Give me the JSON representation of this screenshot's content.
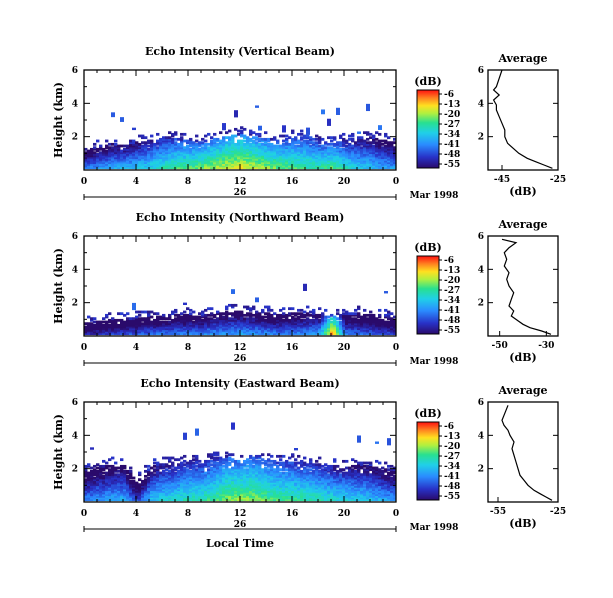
{
  "figure": {
    "date_label": "Mar 1998",
    "xlabel": "Local Time",
    "day_label": "26",
    "ylabel": "Height (km)",
    "colorbar_unit": "(dB)",
    "colorbar_ticks": [
      "-6",
      "-13",
      "-20",
      "-27",
      "-34",
      "-41",
      "-48",
      "-55"
    ],
    "avg_title": "Average",
    "avg_xlabel": "(dB)"
  },
  "chart_data": [
    {
      "type": "heatmap",
      "title": "Echo Intensity (Vertical Beam)",
      "x_ticks": [
        "0",
        "4",
        "8",
        "12",
        "16",
        "20",
        "0"
      ],
      "y_ticks": [
        "6",
        "4",
        "2"
      ],
      "xlim": [
        0,
        24
      ],
      "ylim": [
        0,
        6
      ],
      "clim": [
        -55,
        -6
      ],
      "echo_top_km": [
        1.1,
        1.3,
        1.5,
        1.4,
        1.6,
        1.7,
        1.9,
        1.8,
        1.7,
        1.6,
        1.8,
        2.0,
        2.1,
        1.9,
        1.8,
        1.7,
        1.9,
        2.0,
        1.8,
        1.6,
        1.7,
        1.8,
        1.9,
        1.7,
        1.6
      ],
      "surface_db": [
        -40,
        -37,
        -36,
        -34,
        -33,
        -31,
        -28,
        -25,
        -24,
        -22,
        -20,
        -18,
        -17,
        -19,
        -21,
        -23,
        -24,
        -26,
        -27,
        -24,
        -29,
        -32,
        -34,
        -36,
        -38
      ]
    },
    {
      "type": "heatmap",
      "title": "Echo Intensity (Northward Beam)",
      "x_ticks": [
        "0",
        "4",
        "8",
        "12",
        "16",
        "20",
        "0"
      ],
      "y_ticks": [
        "6",
        "4",
        "2"
      ],
      "xlim": [
        0,
        24
      ],
      "ylim": [
        0,
        6
      ],
      "clim": [
        -55,
        -6
      ],
      "echo_top_km": [
        0.7,
        0.8,
        0.9,
        0.9,
        1.0,
        1.1,
        1.1,
        1.2,
        1.2,
        1.1,
        1.3,
        1.4,
        1.4,
        1.3,
        1.3,
        1.2,
        1.3,
        1.3,
        1.2,
        1.1,
        1.2,
        1.3,
        1.2,
        1.1,
        1.0
      ],
      "surface_db": [
        -48,
        -46,
        -45,
        -44,
        -43,
        -42,
        -41,
        -40,
        -40,
        -39,
        -38,
        -38,
        -37,
        -38,
        -39,
        -40,
        -40,
        -38,
        -36,
        -10,
        -40,
        -42,
        -43,
        -44,
        -45
      ]
    },
    {
      "type": "heatmap",
      "title": "Echo Intensity (Eastward Beam)",
      "x_ticks": [
        "0",
        "4",
        "8",
        "12",
        "16",
        "20",
        "0"
      ],
      "y_ticks": [
        "6",
        "4",
        "2"
      ],
      "xlim": [
        0,
        24
      ],
      "ylim": [
        0,
        6
      ],
      "clim": [
        -55,
        -6
      ],
      "echo_top_km": [
        1.8,
        2.0,
        2.2,
        2.1,
        1.2,
        2.0,
        2.3,
        2.2,
        2.4,
        2.3,
        2.5,
        2.6,
        2.4,
        2.7,
        2.5,
        2.3,
        2.4,
        2.3,
        2.2,
        2.1,
        2.0,
        2.2,
        2.1,
        1.9,
        1.8
      ],
      "surface_db": [
        -40,
        -38,
        -37,
        -36,
        -45,
        -34,
        -32,
        -30,
        -28,
        -27,
        -25,
        -22,
        -21,
        -22,
        -24,
        -25,
        -26,
        -27,
        -28,
        -30,
        -31,
        -33,
        -34,
        -36,
        -38
      ]
    },
    {
      "type": "line",
      "title": "Average",
      "xlabel": "(dB)",
      "x_ticks": [
        "-45",
        "-25"
      ],
      "y_ticks": [
        "6",
        "4",
        "2"
      ],
      "xlim": [
        -50,
        -25
      ],
      "ylim": [
        0,
        6
      ],
      "profile": {
        "height_km": [
          0.1,
          0.3,
          0.5,
          0.7,
          1.0,
          1.3,
          1.6,
          2.0,
          2.4,
          2.8,
          3.2,
          3.6,
          3.9,
          4.2,
          4.5,
          4.8,
          5.0,
          5.5,
          6.0
        ],
        "db": [
          -27,
          -30,
          -33,
          -36,
          -39,
          -41,
          -43,
          -44,
          -44,
          -45,
          -46,
          -47,
          -47,
          -48,
          -46,
          -48,
          -47,
          -46,
          -45
        ]
      }
    },
    {
      "type": "line",
      "title": "Average",
      "xlabel": "(dB)",
      "x_ticks": [
        "-50",
        "-30"
      ],
      "y_ticks": [
        "6",
        "4",
        "2"
      ],
      "xlim": [
        -55,
        -25
      ],
      "ylim": [
        0,
        6
      ],
      "profile": {
        "height_km": [
          0.1,
          0.3,
          0.5,
          0.7,
          0.9,
          1.2,
          1.5,
          1.8,
          2.2,
          2.6,
          3.0,
          3.4,
          3.8,
          4.2,
          4.6,
          5.0,
          5.3,
          5.6,
          5.8
        ],
        "db": [
          -28,
          -32,
          -37,
          -40,
          -42,
          -45,
          -44,
          -46,
          -45,
          -44,
          -46,
          -47,
          -46,
          -48,
          -47,
          -48,
          -46,
          -43,
          -49
        ]
      }
    },
    {
      "type": "line",
      "title": "Average",
      "xlabel": "(dB)",
      "x_ticks": [
        "-55",
        "-25"
      ],
      "y_ticks": [
        "6",
        "4",
        "2"
      ],
      "xlim": [
        -60,
        -25
      ],
      "ylim": [
        0,
        6
      ],
      "profile": {
        "height_km": [
          0.1,
          0.3,
          0.5,
          0.7,
          1.0,
          1.3,
          1.6,
          2.0,
          2.4,
          2.8,
          3.2,
          3.6,
          4.0,
          4.3,
          4.6,
          4.9,
          5.2,
          5.5,
          5.8
        ],
        "db": [
          -28,
          -31,
          -34,
          -37,
          -40,
          -42,
          -44,
          -45,
          -46,
          -47,
          -48,
          -47,
          -49,
          -50,
          -52,
          -53,
          -52,
          -51,
          -50
        ]
      }
    }
  ]
}
